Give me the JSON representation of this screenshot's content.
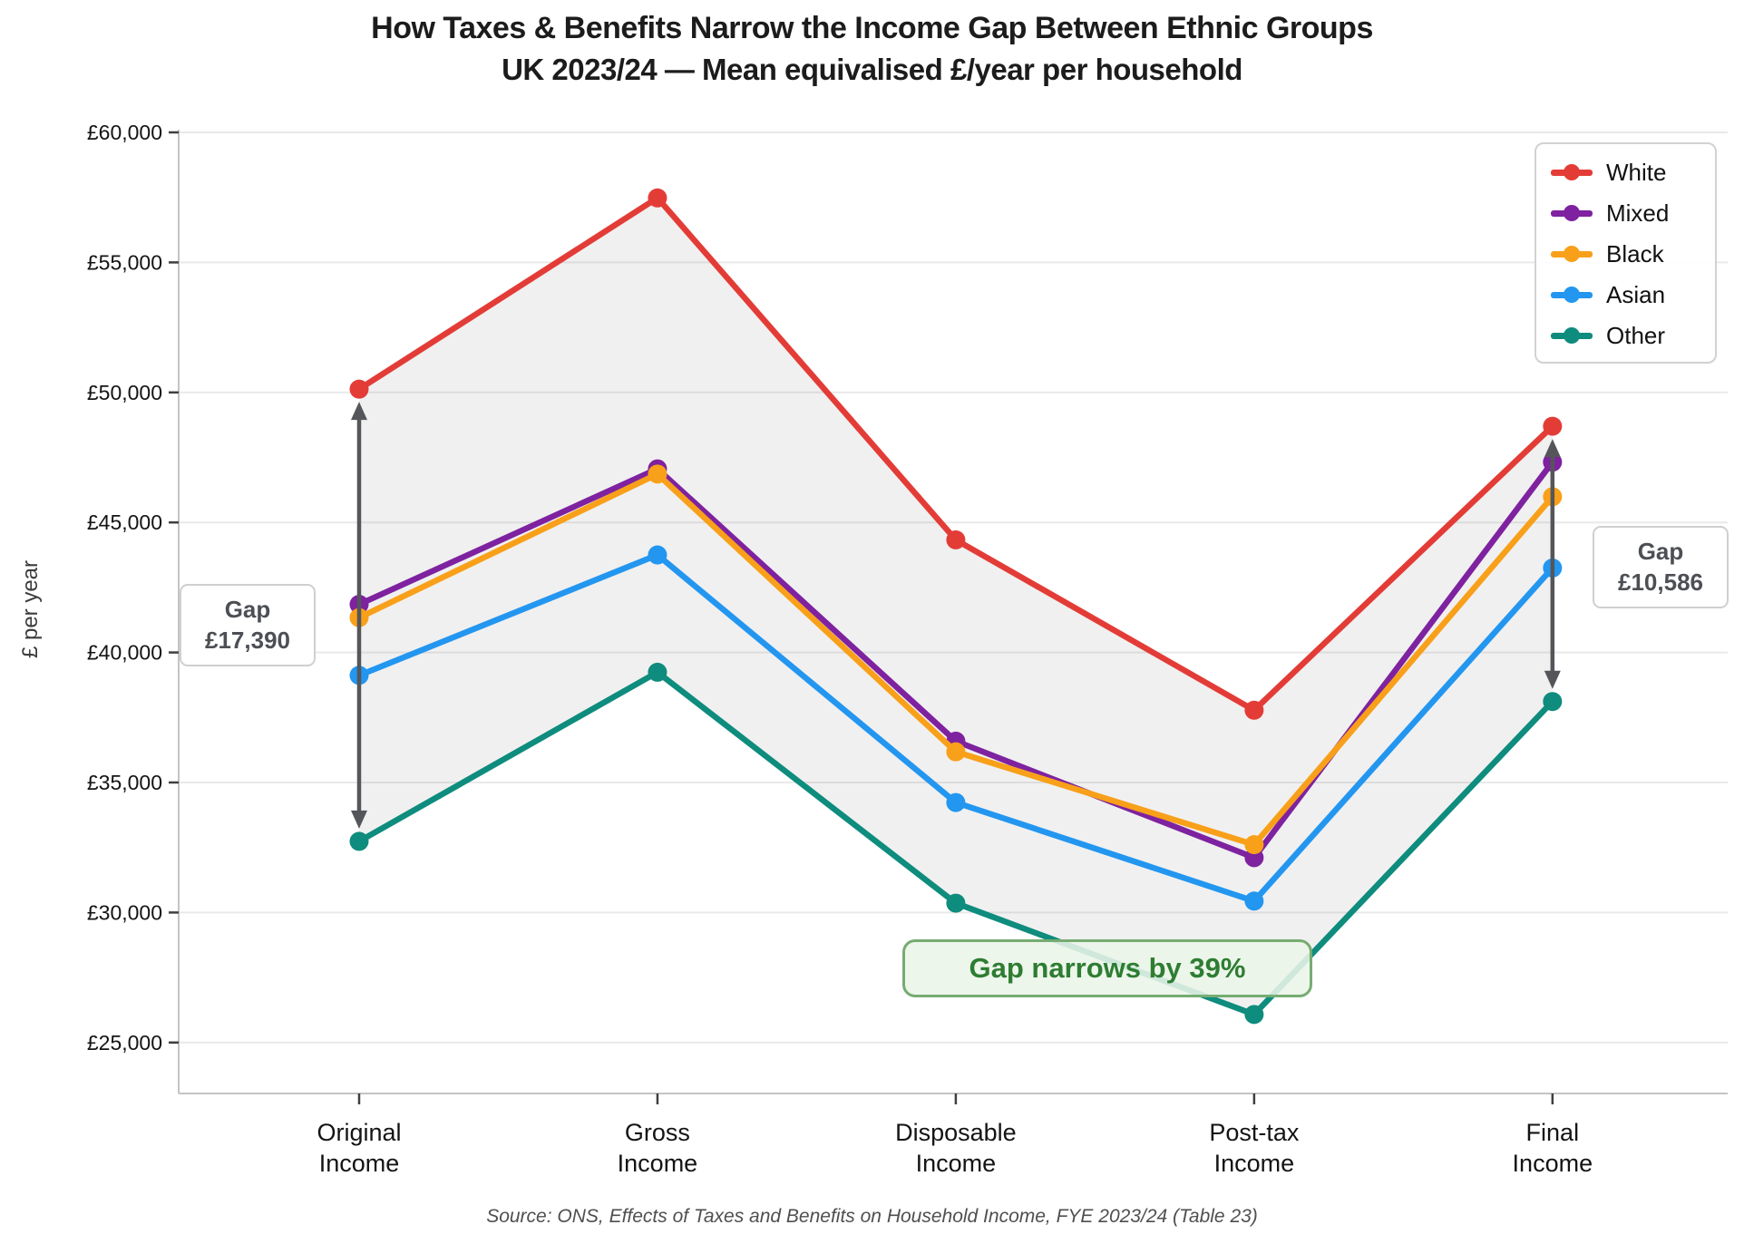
{
  "chart_data": {
    "type": "line",
    "title": "How Taxes & Benefits Narrow the Income Gap Between Ethnic Groups",
    "subtitle": "UK 2023/24 — Mean equivalised £/year per household",
    "ylabel": "£ per year",
    "categories": [
      "Original Income",
      "Gross Income",
      "Disposable Income",
      "Post-tax Income",
      "Final Income"
    ],
    "series": [
      {
        "name": "White",
        "color": "#e33c37",
        "values": [
          50127,
          57480,
          44330,
          37780,
          48700
        ]
      },
      {
        "name": "Mixed",
        "color": "#7e22a0",
        "values": [
          41850,
          47060,
          36590,
          32110,
          47320
        ]
      },
      {
        "name": "Black",
        "color": "#f8a019",
        "values": [
          41340,
          46860,
          36180,
          32610,
          45990
        ]
      },
      {
        "name": "Asian",
        "color": "#2396f0",
        "values": [
          39120,
          43750,
          34230,
          30440,
          43250
        ]
      },
      {
        "name": "Other",
        "color": "#0e8c7d",
        "values": [
          32737,
          39240,
          30360,
          26080,
          38114
        ]
      }
    ],
    "yticks": [
      25000,
      30000,
      35000,
      40000,
      45000,
      50000,
      55000,
      60000
    ],
    "ytick_labels": [
      "£25,000",
      "£30,000",
      "£35,000",
      "£40,000",
      "£45,000",
      "£50,000",
      "£55,000",
      "£60,000"
    ],
    "ylim": [
      23000,
      60100
    ],
    "grid": "horizontal",
    "legend_position": "top-right",
    "band": {
      "between": [
        "White",
        "Other"
      ],
      "color": "rgba(128,128,128,0.12)"
    },
    "annotations": {
      "gap_left": {
        "label": "Gap",
        "value": "£17,390",
        "category_index": 0
      },
      "gap_right": {
        "label": "Gap",
        "value": "£10,586",
        "category_index": 4
      },
      "narrow_note": {
        "text": "Gap narrows by 39%",
        "text_color": "#2e7d32"
      },
      "arrow_color": "#55565a"
    },
    "source": "Source: ONS, Effects of Taxes and Benefits on Household Income, FYE 2023/24 (Table 23)"
  }
}
